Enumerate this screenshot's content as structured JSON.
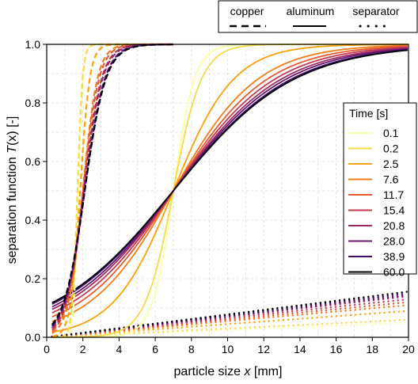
{
  "chart_data": {
    "type": "line",
    "xlabel_prefix": "particle size ",
    "xlabel_var": "x",
    "xlabel_unit": " [mm]",
    "ylabel_prefix": "separation function ",
    "ylabel_var": "T",
    "ylabel_paren": "(x) [-]",
    "xlim": [
      0,
      20
    ],
    "ylim": [
      0,
      1.0
    ],
    "xticks": [
      0,
      2,
      4,
      6,
      8,
      10,
      12,
      14,
      16,
      18,
      20
    ],
    "yticks": [
      0.0,
      0.2,
      0.4,
      0.6,
      0.8,
      1.0
    ],
    "ytick_labels": [
      "0.0",
      "0.2",
      "0.4",
      "0.6",
      "0.8",
      "1.0"
    ],
    "grid": true,
    "material_legend": {
      "placement": "top",
      "items": [
        {
          "label": "copper",
          "style": "dashed"
        },
        {
          "label": "aluminum",
          "style": "solid"
        },
        {
          "label": "separator",
          "style": "dotted"
        }
      ]
    },
    "time_legend": {
      "placement": "right",
      "title": "Time [s]",
      "labels": [
        "0.1",
        "0.2",
        "2.5",
        "7.6",
        "11.7",
        "15.4",
        "20.8",
        "28.0",
        "38.9",
        "60.0"
      ],
      "colors": [
        "#fcffa4",
        "#f5db4c",
        "#fca108",
        "#f57d15",
        "#e45a31",
        "#c13a50",
        "#9f2a63",
        "#6a176e",
        "#3b0f70",
        "#000004"
      ]
    },
    "curve_params": {
      "copper_x50": [
        1.75,
        1.7,
        1.85,
        2.0,
        2.0,
        2.05,
        2.05,
        2.1,
        2.1,
        2.1
      ],
      "copper_k": [
        14,
        12,
        7,
        5,
        4.5,
        4.2,
        4.0,
        3.8,
        3.7,
        3.6
      ],
      "aluminum_x50": 7.0,
      "aluminum_k": [
        12,
        9,
        4.2,
        3.0,
        2.7,
        2.5,
        2.35,
        2.25,
        2.15,
        2.1
      ],
      "separator_slope": [
        0.0025,
        0.003,
        0.0045,
        0.0055,
        0.006,
        0.0065,
        0.007,
        0.0072,
        0.0075,
        0.0078
      ]
    }
  }
}
